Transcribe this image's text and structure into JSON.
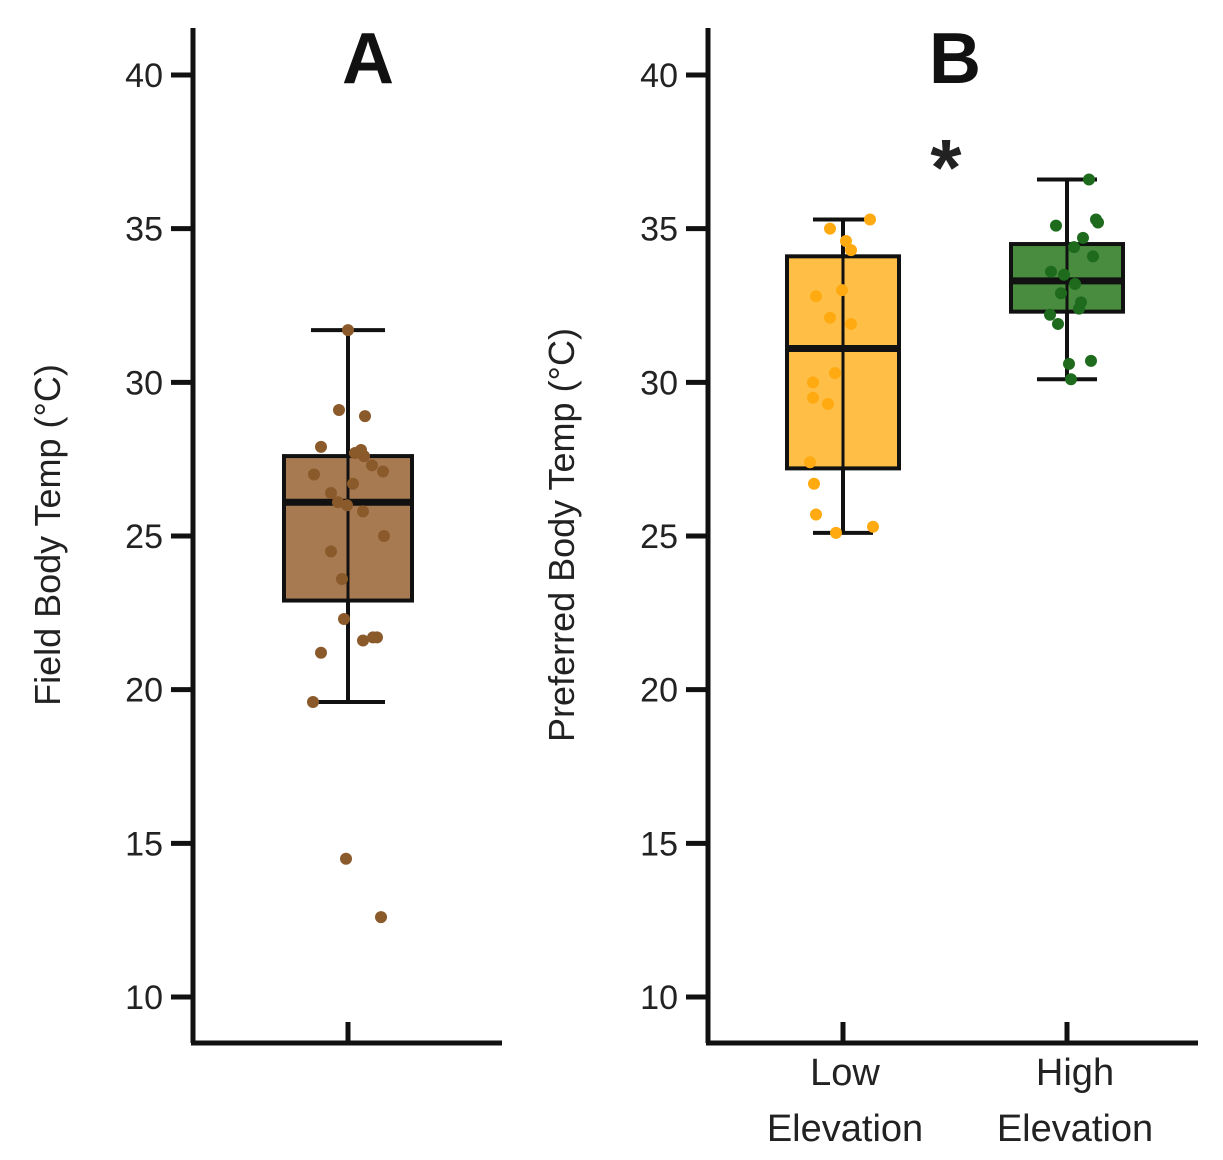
{
  "chart_data": [
    {
      "panel": "A",
      "type": "box",
      "ylabel": "Field Body Temp (°C)",
      "ylim": [
        10,
        41
      ],
      "yticks": [
        10,
        15,
        20,
        25,
        30,
        35,
        40
      ],
      "categories": [
        ""
      ],
      "boxes": [
        {
          "name": "",
          "color": "#a87a52",
          "point_color": "#8b5a2b",
          "whisker_low": 19.6,
          "q1": 22.9,
          "median": 26.1,
          "q3": 27.6,
          "whisker_high": 31.7,
          "points": [
            31.7,
            29.1,
            28.9,
            27.9,
            27.8,
            27.7,
            27.6,
            27.3,
            27.1,
            27.0,
            26.7,
            26.4,
            26.1,
            26.0,
            25.8,
            25.0,
            24.5,
            23.6,
            22.3,
            21.7,
            21.7,
            21.6,
            21.2,
            19.6,
            14.5,
            12.6
          ],
          "jitter": [
            0,
            -9,
            17,
            -27,
            13,
            7,
            16,
            24,
            35,
            -34,
            5,
            -17,
            -10,
            -1,
            15,
            36,
            -17,
            -6,
            -4,
            25,
            29,
            15,
            -27,
            -35,
            -2,
            33
          ]
        }
      ]
    },
    {
      "panel": "B",
      "type": "box",
      "ylabel": "Preferred Body Temp (°C)",
      "ylim": [
        10,
        41
      ],
      "yticks": [
        10,
        15,
        20,
        25,
        30,
        35,
        40
      ],
      "categories": [
        "Low Elevation",
        "High Elevation"
      ],
      "annotation": "*",
      "boxes": [
        {
          "name": "Low Elevation",
          "label_line1": "Low",
          "label_line2": "Elevation",
          "color": "#ffbf47",
          "point_color": "#ffaa11",
          "whisker_low": 25.1,
          "q1": 27.2,
          "median": 31.1,
          "q3": 34.1,
          "whisker_high": 35.3,
          "points": [
            35.3,
            35.0,
            34.6,
            34.3,
            33.0,
            32.8,
            32.1,
            31.9,
            30.3,
            30.0,
            29.5,
            29.3,
            27.4,
            26.7,
            25.7,
            25.3,
            25.1
          ],
          "jitter": [
            27,
            -13,
            3,
            8,
            -1,
            -27,
            -13,
            8,
            -8,
            -30,
            -30,
            -15,
            -33,
            -29,
            -27,
            30,
            -7
          ]
        },
        {
          "name": "High Elevation",
          "label_line1": "High",
          "label_line2": "Elevation",
          "color": "#4a8c3f",
          "point_color": "#1e6b1e",
          "whisker_low": 30.1,
          "q1": 32.3,
          "median": 33.3,
          "q3": 34.5,
          "whisker_high": 36.6,
          "points": [
            36.6,
            35.3,
            35.2,
            35.1,
            34.7,
            34.4,
            34.1,
            33.6,
            33.5,
            33.2,
            32.9,
            32.6,
            32.4,
            32.2,
            31.9,
            30.7,
            30.6,
            30.1
          ],
          "jitter": [
            22,
            29,
            31,
            -11,
            16,
            7,
            26,
            -16,
            -3,
            8,
            -6,
            14,
            12,
            -17,
            -9,
            24,
            2,
            4
          ]
        }
      ]
    }
  ]
}
